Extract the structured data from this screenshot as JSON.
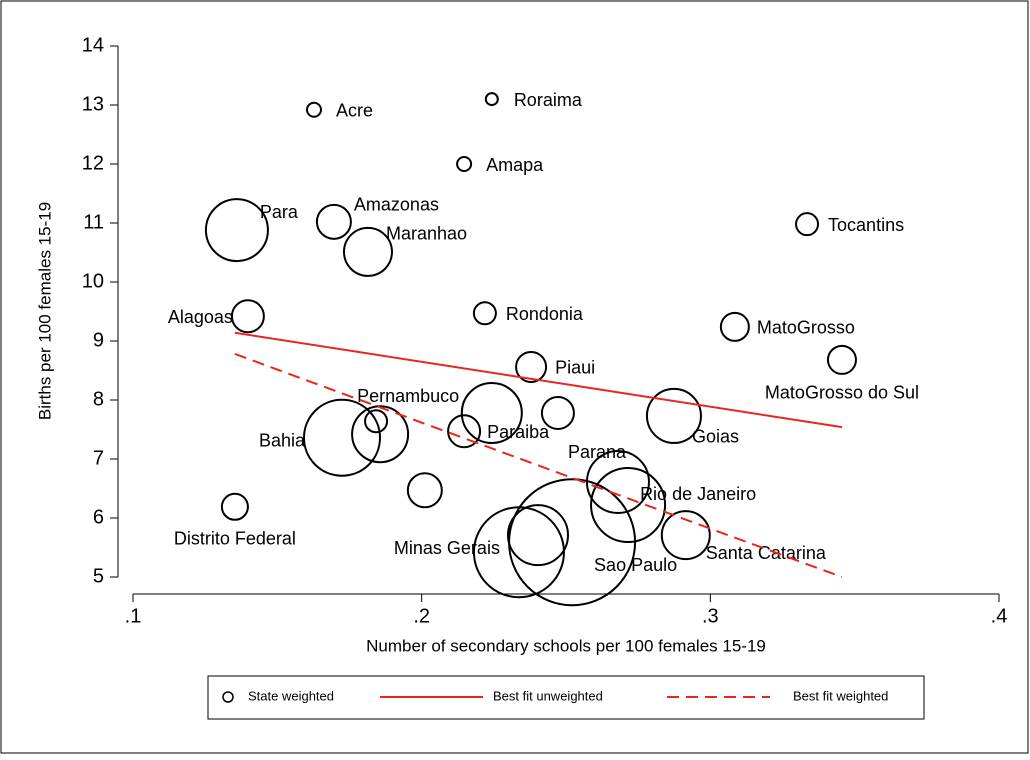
{
  "chart_data": {
    "type": "scatter",
    "x_label": "Number of secondary schools per 100 females 15-19",
    "y_label": "Births per 100 females 15-19",
    "xlim": [
      0.1,
      0.4
    ],
    "ylim": [
      5,
      14
    ],
    "xticks": [
      {
        "value": 0.1,
        "label": ".1"
      },
      {
        "value": 0.2,
        "label": ".2"
      },
      {
        "value": 0.3,
        "label": ".3"
      },
      {
        "value": 0.4,
        "label": ".4"
      }
    ],
    "yticks": [
      5,
      6,
      7,
      8,
      9,
      10,
      11,
      12,
      13,
      14
    ],
    "legend": "bottom",
    "series": [
      {
        "name": "State weighted",
        "color": "#000000",
        "labels": [
          "Acre",
          "Roraima",
          "Amapa",
          "Para",
          "Amazonas",
          "Maranhao",
          "Tocantins",
          "Alagoas",
          "Rondonia",
          "MatoGrosso",
          "MatoGrosso do Sul",
          "Piaui",
          "Pernambuco",
          null,
          "Bahia",
          "Paraiba",
          null,
          null,
          "Goias",
          "Parana",
          "Rio de Janeiro",
          null,
          "Distrito Federal",
          "Minas Gerais",
          null,
          "Sao Paulo",
          "Santa Catarina"
        ],
        "x": [
          0.1627,
          0.2243,
          0.2147,
          0.136,
          0.1696,
          0.1814,
          0.3335,
          0.1398,
          0.2219,
          0.3085,
          0.3456,
          0.2379,
          0.1856,
          0.1842,
          0.1724,
          0.2147,
          0.2243,
          0.2472,
          0.2874,
          0.268,
          0.2715,
          0.2011,
          0.1353,
          0.2337,
          0.2403,
          0.2521,
          0.2915
        ],
        "values": [
          12.92,
          13.1,
          12.0,
          10.88,
          11.02,
          10.51,
          10.98,
          9.42,
          9.47,
          9.24,
          8.68,
          8.56,
          7.42,
          7.64,
          7.36,
          7.47,
          7.78,
          7.78,
          7.73,
          6.61,
          6.22,
          6.47,
          6.19,
          5.42,
          5.71,
          5.59,
          5.71
        ],
        "sizes": [
          49,
          36,
          49,
          961,
          289,
          576,
          121,
          256,
          121,
          196,
          196,
          225,
          784,
          121,
          1444,
          256,
          900,
          256,
          729,
          961,
          1369,
          289,
          169,
          2025,
          900,
          3969,
          576
        ]
      },
      {
        "name": "Best fit unweighted",
        "color": "#e8261c",
        "kind": "line",
        "dash": false,
        "x": [
          0.1353,
          0.3456
        ],
        "values": [
          9.14,
          7.54
        ]
      },
      {
        "name": "Best fit weighted",
        "color": "#e8261c",
        "kind": "line",
        "dash": true,
        "x": [
          0.1353,
          0.3456
        ],
        "values": [
          8.78,
          5.0
        ]
      }
    ]
  }
}
